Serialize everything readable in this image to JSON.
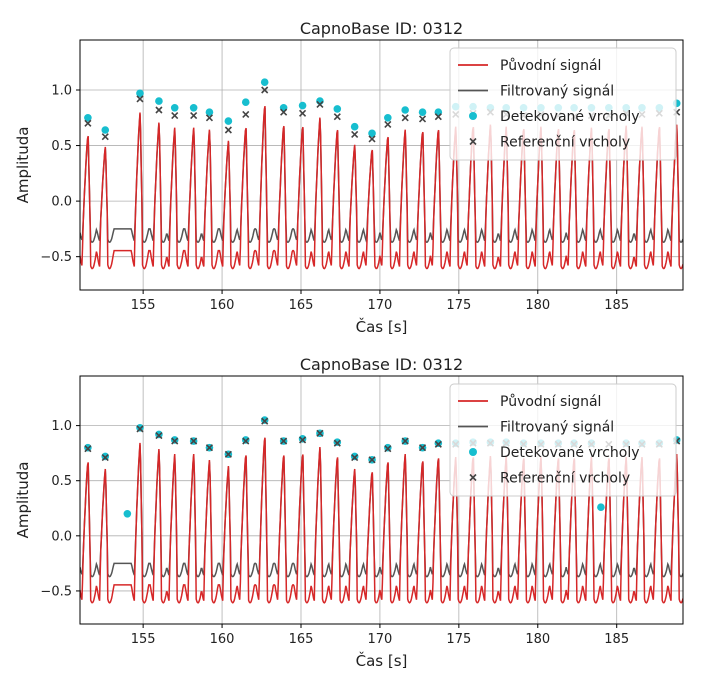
{
  "chart_data": [
    {
      "type": "line",
      "title": "CapnoBase ID: 0312",
      "xlabel": "Čas [s]",
      "ylabel": "Amplituda",
      "xlim": [
        151.0,
        189.2
      ],
      "ylim": [
        -0.8,
        1.45
      ],
      "x_ticks": [
        155,
        160,
        165,
        170,
        175,
        180,
        185
      ],
      "y_ticks": [
        -0.5,
        0.0,
        0.5,
        1.0
      ],
      "grid": true,
      "legend_position": "top-right",
      "colors": {
        "original": "#d62728",
        "filtered": "#555555",
        "detected": "#17becf",
        "reference": "#444444"
      },
      "series": [
        {
          "name": "Původní signál",
          "kind": "line",
          "color": "#d62728"
        },
        {
          "name": "Filtrovaný signál",
          "kind": "line",
          "color": "#555555"
        },
        {
          "name": "Detekované vrcholy",
          "kind": "points",
          "color": "#17becf",
          "x": [
            151.5,
            152.6,
            154.8,
            156.0,
            157.0,
            158.2,
            159.2,
            160.4,
            161.5,
            162.7,
            163.9,
            165.1,
            166.2,
            167.3,
            168.4,
            169.5,
            170.5,
            171.6,
            172.7,
            173.7,
            174.8,
            175.9,
            177.0,
            178.0,
            179.1,
            180.2,
            181.3,
            182.3,
            183.4,
            184.5,
            185.6,
            186.6,
            187.7,
            188.8
          ],
          "y": [
            0.75,
            0.64,
            0.97,
            0.9,
            0.84,
            0.84,
            0.8,
            0.72,
            0.89,
            1.07,
            0.84,
            0.86,
            0.9,
            0.83,
            0.67,
            0.61,
            0.75,
            0.82,
            0.8,
            0.8,
            0.85,
            0.85,
            0.84,
            0.84,
            0.84,
            0.84,
            0.84,
            0.84,
            0.84,
            0.84,
            0.84,
            0.84,
            0.84,
            0.88
          ]
        },
        {
          "name": "Referenční vrcholy",
          "kind": "markers",
          "color": "#444444",
          "x": [
            151.5,
            152.6,
            154.8,
            156.0,
            157.0,
            158.2,
            159.2,
            160.4,
            161.5,
            162.7,
            163.9,
            165.1,
            166.2,
            167.3,
            168.4,
            169.5,
            170.5,
            171.6,
            172.7,
            173.7,
            174.8,
            175.9,
            177.0,
            178.0,
            179.1,
            180.2,
            181.3,
            182.3,
            183.4,
            184.5,
            185.6,
            186.6,
            187.7,
            188.8
          ],
          "y": [
            0.7,
            0.58,
            0.92,
            0.82,
            0.77,
            0.77,
            0.75,
            0.64,
            0.78,
            1.0,
            0.8,
            0.79,
            0.87,
            0.76,
            0.6,
            0.56,
            0.69,
            0.75,
            0.74,
            0.76,
            0.78,
            0.79,
            0.8,
            0.78,
            0.77,
            0.78,
            0.77,
            0.76,
            0.77,
            0.77,
            0.79,
            0.78,
            0.79,
            0.8
          ]
        }
      ]
    },
    {
      "type": "line",
      "title": "CapnoBase ID: 0312",
      "xlabel": "Čas [s]",
      "ylabel": "Amplituda",
      "xlim": [
        151.0,
        189.2
      ],
      "ylim": [
        -0.8,
        1.45
      ],
      "x_ticks": [
        155,
        160,
        165,
        170,
        175,
        180,
        185
      ],
      "y_ticks": [
        -0.5,
        0.0,
        0.5,
        1.0
      ],
      "grid": true,
      "legend_position": "top-right",
      "colors": {
        "original": "#d62728",
        "filtered": "#555555",
        "detected": "#17becf",
        "reference": "#444444"
      },
      "series": [
        {
          "name": "Původní signál",
          "kind": "line",
          "color": "#d62728"
        },
        {
          "name": "Filtrovaný signál",
          "kind": "line",
          "color": "#555555"
        },
        {
          "name": "Detekované vrcholy",
          "kind": "points",
          "color": "#17becf",
          "x": [
            151.5,
            152.6,
            154.0,
            154.8,
            156.0,
            157.0,
            158.2,
            159.2,
            160.4,
            161.5,
            162.7,
            163.9,
            165.1,
            166.2,
            167.3,
            168.4,
            169.5,
            170.5,
            171.6,
            172.7,
            173.7,
            174.8,
            175.9,
            177.0,
            178.0,
            179.1,
            180.2,
            181.3,
            182.3,
            183.4,
            184.0,
            185.6,
            186.6,
            187.7,
            188.8
          ],
          "y": [
            0.8,
            0.72,
            0.2,
            0.98,
            0.92,
            0.87,
            0.86,
            0.8,
            0.74,
            0.87,
            1.05,
            0.86,
            0.88,
            0.93,
            0.85,
            0.72,
            0.69,
            0.8,
            0.86,
            0.8,
            0.84,
            0.84,
            0.85,
            0.85,
            0.85,
            0.84,
            0.84,
            0.84,
            0.84,
            0.84,
            0.26,
            0.84,
            0.84,
            0.84,
            0.87
          ]
        },
        {
          "name": "Referenční vrcholy",
          "kind": "markers",
          "color": "#444444",
          "x": [
            151.5,
            152.6,
            154.8,
            156.0,
            157.0,
            158.2,
            159.2,
            160.4,
            161.5,
            162.7,
            163.9,
            165.1,
            166.2,
            167.3,
            168.4,
            169.5,
            170.5,
            171.6,
            172.7,
            173.7,
            174.8,
            175.9,
            177.0,
            178.0,
            179.1,
            180.2,
            181.3,
            182.3,
            183.4,
            184.5,
            185.6,
            186.6,
            187.7,
            188.8
          ],
          "y": [
            0.79,
            0.71,
            0.97,
            0.91,
            0.86,
            0.86,
            0.8,
            0.74,
            0.86,
            1.04,
            0.86,
            0.87,
            0.93,
            0.84,
            0.71,
            0.69,
            0.79,
            0.86,
            0.8,
            0.83,
            0.83,
            0.84,
            0.84,
            0.84,
            0.83,
            0.83,
            0.83,
            0.83,
            0.83,
            0.83,
            0.83,
            0.83,
            0.83,
            0.86
          ]
        }
      ]
    }
  ]
}
